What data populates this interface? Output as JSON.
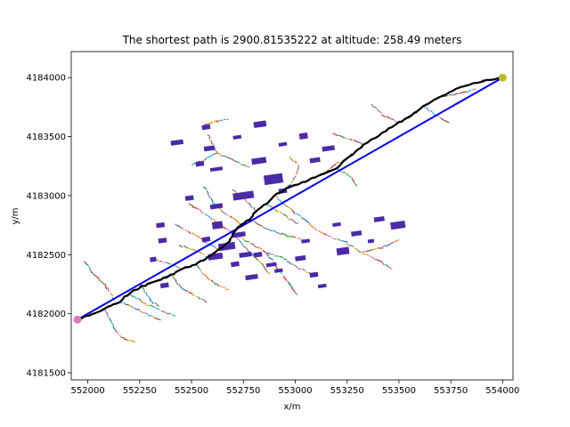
{
  "chart_data": {
    "type": "scatter",
    "title": "The shortest path is 2900.81535222 at altitude: 258.49 meters",
    "xlabel": "x/m",
    "ylabel": "y/m",
    "xlim": [
      551920,
      554050
    ],
    "ylim": [
      4181440,
      4184220
    ],
    "xticks": [
      552000,
      552250,
      552500,
      552750,
      553000,
      553250,
      553500,
      553750,
      554000
    ],
    "yticks": [
      4181500,
      4182000,
      4182500,
      4183000,
      4183500,
      4184000
    ],
    "start_point": {
      "x": 551950,
      "y": 4181950,
      "color": "#e377c2"
    },
    "end_point": {
      "x": 554000,
      "y": 4184000,
      "color": "#bcbd22"
    },
    "straight_line": {
      "color": "#0000ff",
      "points": [
        [
          551950,
          4181950
        ],
        [
          554000,
          4184000
        ]
      ]
    },
    "shortest_path": {
      "color": "#000000",
      "points": [
        [
          551950,
          4181950
        ],
        [
          552010,
          4181990
        ],
        [
          552080,
          4182040
        ],
        [
          552150,
          4182100
        ],
        [
          552200,
          4182170
        ],
        [
          552260,
          4182230
        ],
        [
          552340,
          4182280
        ],
        [
          552400,
          4182330
        ],
        [
          552460,
          4182380
        ],
        [
          552520,
          4182420
        ],
        [
          552580,
          4182480
        ],
        [
          552630,
          4182540
        ],
        [
          552680,
          4182600
        ],
        [
          552700,
          4182680
        ],
        [
          552740,
          4182760
        ],
        [
          552780,
          4182800
        ],
        [
          552810,
          4182870
        ],
        [
          552860,
          4182930
        ],
        [
          552900,
          4183000
        ],
        [
          552960,
          4183060
        ],
        [
          553050,
          4183120
        ],
        [
          553130,
          4183180
        ],
        [
          553200,
          4183230
        ],
        [
          553260,
          4183330
        ],
        [
          553330,
          4183430
        ],
        [
          553420,
          4183530
        ],
        [
          553500,
          4183620
        ],
        [
          553560,
          4183680
        ],
        [
          553620,
          4183760
        ],
        [
          553700,
          4183840
        ],
        [
          553800,
          4183920
        ],
        [
          553900,
          4183970
        ],
        [
          554000,
          4184000
        ]
      ]
    },
    "buildings_color": "#4b2aa8",
    "buildings": [
      [
        552400,
        4183430,
        60,
        40
      ],
      [
        552560,
        4183380,
        50,
        40
      ],
      [
        552520,
        4183250,
        40,
        40
      ],
      [
        552590,
        4183210,
        60,
        30
      ],
      [
        552790,
        4183270,
        70,
        50
      ],
      [
        552700,
        4183480,
        40,
        30
      ],
      [
        552920,
        4183420,
        40,
        30
      ],
      [
        553020,
        4183480,
        40,
        50
      ],
      [
        553130,
        4183380,
        60,
        40
      ],
      [
        553070,
        4183280,
        50,
        40
      ],
      [
        552850,
        4183100,
        90,
        80
      ],
      [
        552920,
        4183020,
        40,
        40
      ],
      [
        552700,
        4182970,
        100,
        60
      ],
      [
        552590,
        4182890,
        60,
        40
      ],
      [
        552600,
        4182720,
        50,
        60
      ],
      [
        552700,
        4182650,
        60,
        40
      ],
      [
        552630,
        4182540,
        80,
        60
      ],
      [
        552550,
        4182610,
        40,
        40
      ],
      [
        552580,
        4182460,
        70,
        50
      ],
      [
        552730,
        4182480,
        60,
        40
      ],
      [
        552690,
        4182400,
        40,
        40
      ],
      [
        552760,
        4182290,
        60,
        40
      ],
      [
        552860,
        4182400,
        50,
        30
      ],
      [
        552900,
        4182350,
        40,
        30
      ],
      [
        553000,
        4182450,
        50,
        40
      ],
      [
        553200,
        4182500,
        60,
        60
      ],
      [
        553270,
        4182660,
        50,
        40
      ],
      [
        553350,
        4182600,
        30,
        30
      ],
      [
        553460,
        4182720,
        70,
        60
      ],
      [
        553380,
        4182780,
        50,
        40
      ],
      [
        553180,
        4182740,
        40,
        30
      ],
      [
        553030,
        4182600,
        40,
        30
      ],
      [
        553070,
        4182310,
        40,
        40
      ],
      [
        553110,
        4182220,
        40,
        30
      ],
      [
        552800,
        4182480,
        40,
        40
      ],
      [
        552350,
        4182220,
        40,
        40
      ],
      [
        552330,
        4182730,
        40,
        40
      ],
      [
        552340,
        4182600,
        40,
        40
      ],
      [
        552300,
        4182440,
        30,
        40
      ],
      [
        552470,
        4182960,
        40,
        40
      ],
      [
        552550,
        4183560,
        40,
        40
      ],
      [
        552800,
        4183580,
        60,
        50
      ]
    ]
  }
}
